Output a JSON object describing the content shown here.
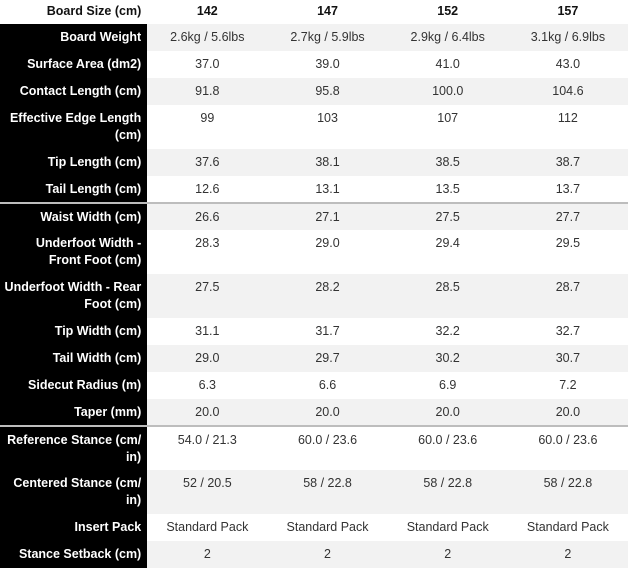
{
  "header": {
    "label": "Board Size (cm)",
    "sizes": [
      "142",
      "147",
      "152",
      "157"
    ]
  },
  "rows": [
    {
      "label": "Board Weight",
      "values": [
        "2.6kg / 5.6lbs",
        "2.7kg / 5.9lbs",
        "2.9kg / 6.4lbs",
        "3.1kg / 6.9lbs"
      ]
    },
    {
      "label": "Surface Area (dm2)",
      "values": [
        "37.0",
        "39.0",
        "41.0",
        "43.0"
      ]
    },
    {
      "label": "Contact Length (cm)",
      "values": [
        "91.8",
        "95.8",
        "100.0",
        "104.6"
      ]
    },
    {
      "label": "Effective Edge Length (cm)",
      "values": [
        "99",
        "103",
        "107",
        "112"
      ]
    },
    {
      "label": "Tip Length (cm)",
      "values": [
        "37.6",
        "38.1",
        "38.5",
        "38.7"
      ]
    },
    {
      "label": "Tail Length (cm)",
      "values": [
        "12.6",
        "13.1",
        "13.5",
        "13.7"
      ]
    },
    {
      "label": "Waist Width (cm)",
      "values": [
        "26.6",
        "27.1",
        "27.5",
        "27.7"
      ]
    },
    {
      "label": "Underfoot Width - Front Foot (cm)",
      "values": [
        "28.3",
        "29.0",
        "29.4",
        "29.5"
      ]
    },
    {
      "label": "Underfoot Width - Rear Foot (cm)",
      "values": [
        "27.5",
        "28.2",
        "28.5",
        "28.7"
      ]
    },
    {
      "label": "Tip Width (cm)",
      "values": [
        "31.1",
        "31.7",
        "32.2",
        "32.7"
      ]
    },
    {
      "label": "Tail Width (cm)",
      "values": [
        "29.0",
        "29.7",
        "30.2",
        "30.7"
      ]
    },
    {
      "label": "Sidecut Radius (m)",
      "values": [
        "6.3",
        "6.6",
        "6.9",
        "7.2"
      ]
    },
    {
      "label": "Taper (mm)",
      "values": [
        "20.0",
        "20.0",
        "20.0",
        "20.0"
      ]
    },
    {
      "label": "Reference Stance (cm/ in)",
      "values": [
        "54.0 / 21.3",
        "60.0 / 23.6",
        "60.0 / 23.6",
        "60.0 / 23.6"
      ]
    },
    {
      "label": "Centered Stance (cm/ in)",
      "values": [
        "52 / 20.5",
        "58 / 22.8",
        "58 / 22.8",
        "58 / 22.8"
      ]
    },
    {
      "label": "Insert Pack",
      "values": [
        "Standard Pack",
        "Standard Pack",
        "Standard Pack",
        "Standard Pack"
      ]
    },
    {
      "label": "Stance Setback (cm)",
      "values": [
        "2",
        "2",
        "2",
        "2"
      ]
    }
  ]
}
